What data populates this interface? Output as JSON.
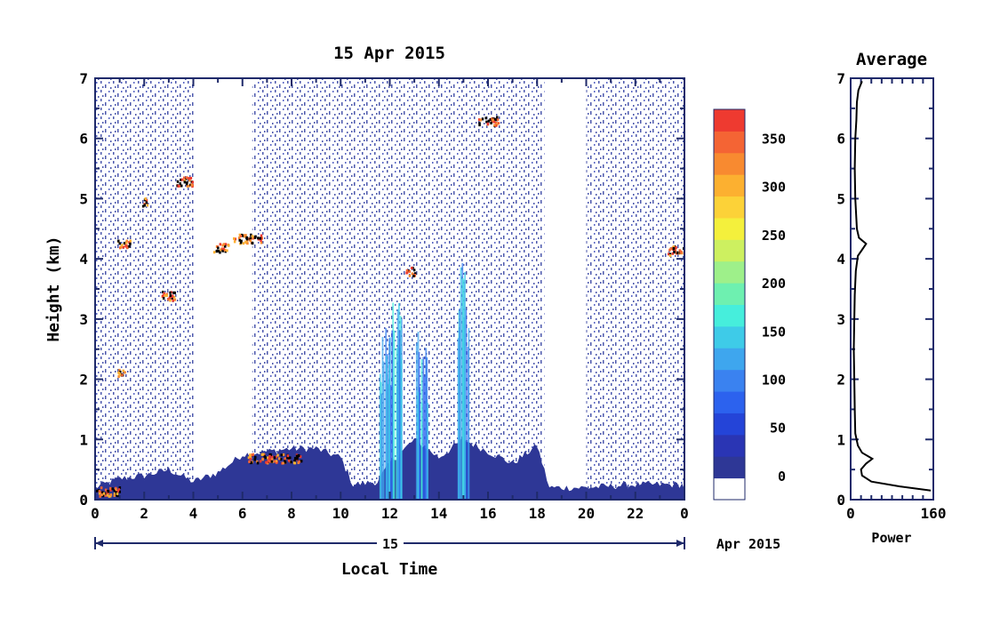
{
  "chart_data": [
    {
      "type": "heatmap",
      "title": "15 Apr 2015",
      "xlabel": "Local Time",
      "ylabel": "Height (km)",
      "x_ticks": [
        "0",
        "2",
        "4",
        "6",
        "8",
        "10",
        "12",
        "14",
        "16",
        "18",
        "20",
        "22",
        "0"
      ],
      "y_ticks": [
        "0",
        "1",
        "2",
        "3",
        "4",
        "5",
        "6",
        "7"
      ],
      "xlim": [
        0,
        24
      ],
      "ylim": [
        0,
        7
      ],
      "date_day": "15",
      "date_month_year": "Apr 2015",
      "colorbar": {
        "ticks": [
          "0",
          "50",
          "100",
          "150",
          "200",
          "250",
          "300",
          "350"
        ],
        "range": [
          -25,
          380
        ],
        "colors": [
          "#ffffff",
          "#2e3796",
          "#2a35b4",
          "#2444d8",
          "#2c62ee",
          "#3a82f0",
          "#3ea6ee",
          "#3ecbe8",
          "#46eedc",
          "#6ef0b0",
          "#9ef08a",
          "#cdf060",
          "#f4f03c",
          "#fcd238",
          "#fcb030",
          "#f88a30",
          "#f46434",
          "#ee3a30"
        ]
      },
      "features": {
        "boundary_layer_height_km": [
          [
            0,
            0.2
          ],
          [
            1,
            0.35
          ],
          [
            2,
            0.4
          ],
          [
            3,
            0.5
          ],
          [
            4,
            0.3
          ],
          [
            5,
            0.45
          ],
          [
            6,
            0.75
          ],
          [
            7,
            0.8
          ],
          [
            8,
            0.85
          ],
          [
            9,
            0.85
          ],
          [
            10,
            0.7
          ],
          [
            10.5,
            0.25
          ],
          [
            11.5,
            0.3
          ],
          [
            12,
            0.6
          ],
          [
            13,
            1.0
          ],
          [
            14,
            0.7
          ],
          [
            15,
            1.0
          ],
          [
            16,
            0.8
          ],
          [
            17,
            0.6
          ],
          [
            18,
            0.9
          ],
          [
            18.5,
            0.2
          ],
          [
            20,
            0.2
          ],
          [
            22,
            0.25
          ],
          [
            24,
            0.25
          ]
        ],
        "cloud_layers": [
          {
            "t0": 0.0,
            "t1": 1.0,
            "h": 0.15
          },
          {
            "t0": 0.9,
            "t1": 1.4,
            "h": 4.25
          },
          {
            "t0": 0.9,
            "t1": 1.2,
            "h": 2.1
          },
          {
            "t0": 1.9,
            "t1": 2.1,
            "h": 4.95
          },
          {
            "t0": 2.7,
            "t1": 3.3,
            "h": 3.4
          },
          {
            "t0": 3.3,
            "t1": 4.0,
            "h": 5.3
          },
          {
            "t0": 4.8,
            "t1": 5.4,
            "h": 4.2
          },
          {
            "t0": 5.6,
            "t1": 6.8,
            "h": 4.35
          },
          {
            "t0": 6.2,
            "t1": 8.4,
            "h": 0.7
          },
          {
            "t0": 12.6,
            "t1": 13.0,
            "h": 3.8
          },
          {
            "t0": 15.6,
            "t1": 16.4,
            "h": 6.3
          },
          {
            "t0": 23.3,
            "t1": 24.0,
            "h": 4.15
          }
        ],
        "convective_columns": [
          {
            "t": 11.8,
            "top": 3.0
          },
          {
            "t": 12.3,
            "top": 3.3
          },
          {
            "t": 13.3,
            "top": 2.8
          },
          {
            "t": 15.0,
            "top": 4.0
          }
        ],
        "gaps": [
          [
            4.0,
            6.4
          ],
          [
            18.3,
            20.0
          ]
        ]
      }
    },
    {
      "type": "line",
      "title": "Average",
      "xlabel": "Power",
      "x_ticks": [
        "0",
        "160"
      ],
      "y_ticks": [
        "0",
        "1",
        "2",
        "3",
        "4",
        "5",
        "6",
        "7"
      ],
      "xlim": [
        0,
        160
      ],
      "ylim": [
        0,
        7
      ],
      "points": [
        [
          155,
          0.15
        ],
        [
          95,
          0.22
        ],
        [
          40,
          0.3
        ],
        [
          22,
          0.4
        ],
        [
          20,
          0.5
        ],
        [
          30,
          0.6
        ],
        [
          42,
          0.68
        ],
        [
          22,
          0.78
        ],
        [
          14,
          0.9
        ],
        [
          9,
          1.1
        ],
        [
          8,
          1.5
        ],
        [
          7,
          2.0
        ],
        [
          6,
          2.5
        ],
        [
          7,
          3.0
        ],
        [
          8,
          3.4
        ],
        [
          10,
          3.8
        ],
        [
          14,
          4.05
        ],
        [
          22,
          4.15
        ],
        [
          30,
          4.25
        ],
        [
          16,
          4.35
        ],
        [
          12,
          4.5
        ],
        [
          9,
          5.0
        ],
        [
          8,
          5.5
        ],
        [
          9,
          6.0
        ],
        [
          11,
          6.3
        ],
        [
          12,
          6.6
        ],
        [
          15,
          6.8
        ],
        [
          22,
          6.95
        ]
      ]
    }
  ]
}
